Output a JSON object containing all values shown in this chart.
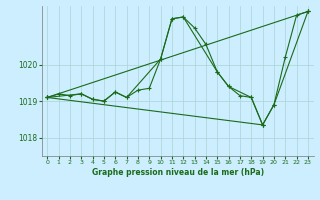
{
  "title": "Graphe pression niveau de la mer (hPa)",
  "bg_color": "#cceeff",
  "grid_color": "#aad4d4",
  "line_color": "#1a6b1a",
  "xlim": [
    -0.5,
    23.5
  ],
  "ylim": [
    1017.5,
    1021.6
  ],
  "yticks": [
    1018,
    1019,
    1020
  ],
  "xticks": [
    0,
    1,
    2,
    3,
    4,
    5,
    6,
    7,
    8,
    9,
    10,
    11,
    12,
    13,
    14,
    15,
    16,
    17,
    18,
    19,
    20,
    21,
    22,
    23
  ],
  "series1": {
    "x": [
      0,
      1,
      2,
      3,
      4,
      5,
      6,
      7,
      8,
      9,
      10,
      11,
      12,
      13,
      14,
      15,
      16,
      17,
      18,
      19,
      20,
      21,
      22,
      23
    ],
    "y": [
      1019.1,
      1019.2,
      1019.15,
      1019.2,
      1019.05,
      1019.0,
      1019.25,
      1019.1,
      1019.3,
      1019.35,
      1020.15,
      1021.25,
      1021.3,
      1021.0,
      1020.55,
      1019.8,
      1019.4,
      1019.15,
      1019.1,
      1018.35,
      1018.9,
      1020.2,
      1021.35,
      1021.45
    ]
  },
  "series2": {
    "x": [
      0,
      3,
      4,
      5,
      6,
      7,
      10,
      11,
      12,
      15,
      16,
      18,
      19,
      20,
      23
    ],
    "y": [
      1019.1,
      1019.2,
      1019.05,
      1019.0,
      1019.25,
      1019.1,
      1020.15,
      1021.25,
      1021.3,
      1019.8,
      1019.4,
      1019.1,
      1018.35,
      1018.9,
      1021.45
    ]
  },
  "series3": {
    "x": [
      0,
      23
    ],
    "y": [
      1019.1,
      1021.45
    ]
  },
  "series4": {
    "x": [
      0,
      19
    ],
    "y": [
      1019.1,
      1018.35
    ]
  }
}
